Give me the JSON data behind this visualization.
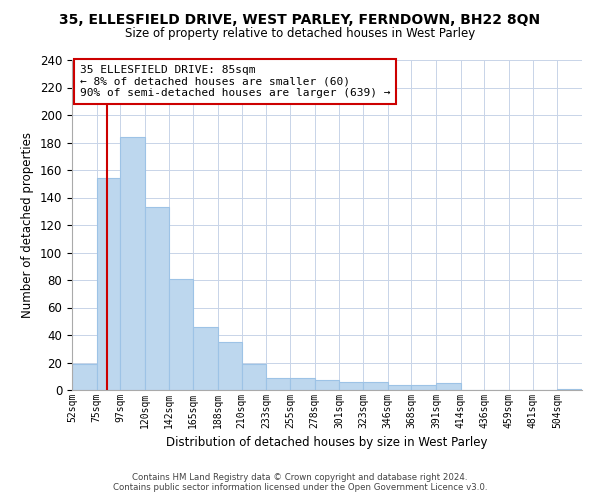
{
  "title1": "35, ELLESFIELD DRIVE, WEST PARLEY, FERNDOWN, BH22 8QN",
  "title2": "Size of property relative to detached houses in West Parley",
  "xlabel": "Distribution of detached houses by size in West Parley",
  "ylabel": "Number of detached properties",
  "bar_labels": [
    "52sqm",
    "75sqm",
    "97sqm",
    "120sqm",
    "142sqm",
    "165sqm",
    "188sqm",
    "210sqm",
    "233sqm",
    "255sqm",
    "278sqm",
    "301sqm",
    "323sqm",
    "346sqm",
    "368sqm",
    "391sqm",
    "414sqm",
    "436sqm",
    "459sqm",
    "481sqm",
    "504sqm"
  ],
  "bar_values": [
    19,
    154,
    184,
    133,
    81,
    46,
    35,
    19,
    9,
    9,
    7,
    6,
    6,
    4,
    4,
    5,
    0,
    0,
    0,
    0,
    1
  ],
  "bar_color": "#bdd7ee",
  "bar_edge_color": "#9dc3e6",
  "property_line_x": 85,
  "bin_edges": [
    52,
    75,
    97,
    120,
    142,
    165,
    188,
    210,
    233,
    255,
    278,
    301,
    323,
    346,
    368,
    391,
    414,
    436,
    459,
    481,
    504,
    527
  ],
  "vline_color": "#cc0000",
  "annotation_title": "35 ELLESFIELD DRIVE: 85sqm",
  "annotation_line1": "← 8% of detached houses are smaller (60)",
  "annotation_line2": "90% of semi-detached houses are larger (639) →",
  "annotation_box_color": "#ffffff",
  "annotation_box_edge": "#cc0000",
  "ylim": [
    0,
    240
  ],
  "yticks": [
    0,
    20,
    40,
    60,
    80,
    100,
    120,
    140,
    160,
    180,
    200,
    220,
    240
  ],
  "footer1": "Contains HM Land Registry data © Crown copyright and database right 2024.",
  "footer2": "Contains public sector information licensed under the Open Government Licence v3.0.",
  "bg_color": "#ffffff",
  "grid_color": "#c8d4e8"
}
